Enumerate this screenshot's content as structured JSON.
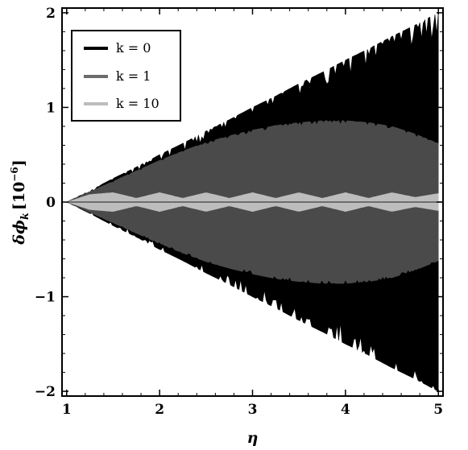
{
  "chart_data": {
    "type": "area",
    "title": "",
    "xlabel": "η",
    "ylabel": "δφ_k [10⁻⁶]",
    "ylabel_parts": {
      "main": "δϕ",
      "sub": "k",
      "bracket_open": "[",
      "base": "10",
      "exp": "−6",
      "bracket_close": "]"
    },
    "xlim": [
      0.95,
      5.05
    ],
    "ylim": [
      -2.05,
      2.05
    ],
    "x_ticks": [
      1,
      2,
      3,
      4,
      5
    ],
    "x_tick_labels": [
      "1",
      "2",
      "3",
      "4",
      "5"
    ],
    "y_ticks": [
      -2,
      -1,
      0,
      1,
      2
    ],
    "y_tick_labels": [
      "−2",
      "−1",
      "0",
      "1",
      "2"
    ],
    "grid": false,
    "legend_position": "top-left",
    "series": [
      {
        "name": "k = 0",
        "color": "#000000",
        "x": [
          1.0,
          1.25,
          1.5,
          1.75,
          2.0,
          2.25,
          2.5,
          2.75,
          3.0,
          3.25,
          3.5,
          3.75,
          4.0,
          4.25,
          4.5,
          4.75,
          5.0
        ],
        "upper": [
          0.0,
          0.12,
          0.25,
          0.37,
          0.5,
          0.62,
          0.75,
          0.87,
          1.0,
          1.12,
          1.25,
          1.37,
          1.5,
          1.62,
          1.75,
          1.87,
          2.0
        ],
        "lower": [
          0.0,
          -0.12,
          -0.25,
          -0.37,
          -0.5,
          -0.62,
          -0.75,
          -0.87,
          -1.0,
          -1.12,
          -1.25,
          -1.37,
          -1.5,
          -1.62,
          -1.75,
          -1.87,
          -2.0
        ]
      },
      {
        "name": "k = 1",
        "color": "#4a4a4a",
        "x": [
          1.0,
          1.25,
          1.5,
          1.75,
          2.0,
          2.25,
          2.5,
          2.75,
          3.0,
          3.25,
          3.5,
          3.75,
          4.0,
          4.25,
          4.5,
          4.75,
          5.0
        ],
        "upper": [
          0.0,
          0.11,
          0.22,
          0.33,
          0.44,
          0.54,
          0.63,
          0.7,
          0.76,
          0.81,
          0.84,
          0.86,
          0.86,
          0.84,
          0.8,
          0.72,
          0.62
        ],
        "lower": [
          0.0,
          -0.11,
          -0.22,
          -0.33,
          -0.44,
          -0.54,
          -0.63,
          -0.7,
          -0.76,
          -0.81,
          -0.84,
          -0.86,
          -0.86,
          -0.84,
          -0.8,
          -0.72,
          -0.62
        ]
      },
      {
        "name": "k = 10",
        "color": "#bdbdbd",
        "x": [
          1.0,
          1.25,
          1.5,
          1.75,
          2.0,
          2.25,
          2.5,
          2.75,
          3.0,
          3.25,
          3.5,
          3.75,
          4.0,
          4.25,
          4.5,
          4.75,
          5.0
        ],
        "upper": [
          0.0,
          0.08,
          0.1,
          0.04,
          0.1,
          0.04,
          0.1,
          0.04,
          0.1,
          0.04,
          0.1,
          0.04,
          0.1,
          0.04,
          0.1,
          0.05,
          0.09
        ],
        "lower": [
          0.0,
          -0.08,
          -0.1,
          -0.04,
          -0.1,
          -0.04,
          -0.1,
          -0.04,
          -0.1,
          -0.04,
          -0.1,
          -0.04,
          -0.1,
          -0.04,
          -0.1,
          -0.05,
          -0.09
        ]
      }
    ],
    "reference_line_y": 0
  }
}
